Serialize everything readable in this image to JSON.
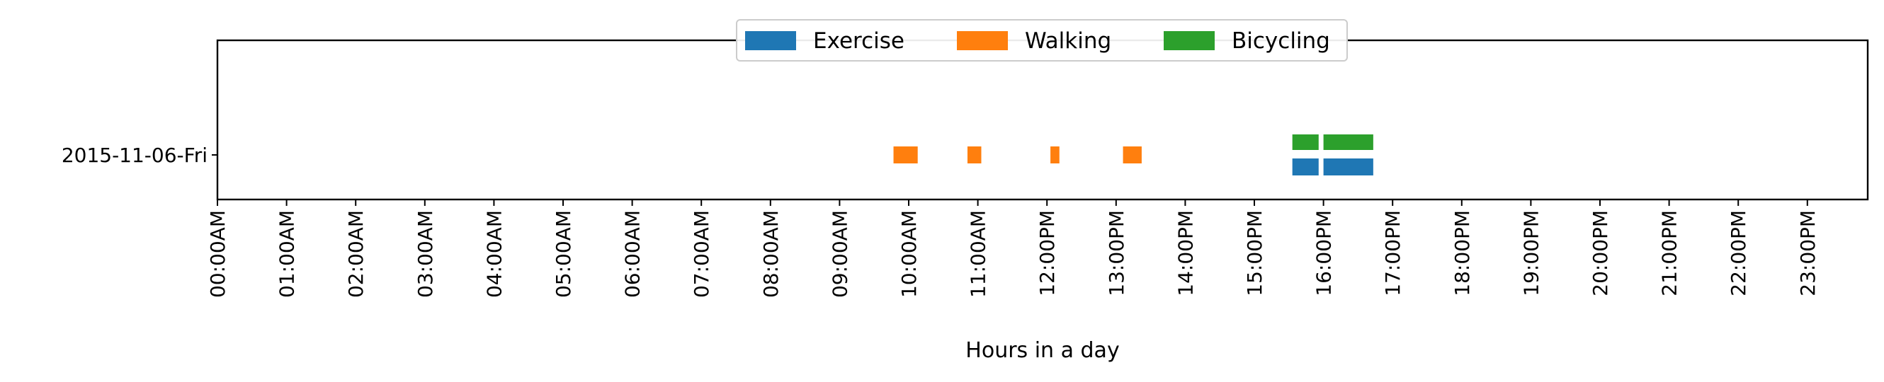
{
  "chart_data": {
    "type": "bar",
    "orientation": "horizontal-timeline",
    "title": "",
    "xlabel": "Hours in a day",
    "ylabel": "",
    "xlim": [
      0,
      24
    ],
    "x_tick_values": [
      0,
      1,
      2,
      3,
      4,
      5,
      6,
      7,
      8,
      9,
      10,
      11,
      12,
      13,
      14,
      15,
      16,
      17,
      18,
      19,
      20,
      21,
      22,
      23
    ],
    "x_tick_labels": [
      "00:00AM",
      "01:00AM",
      "02:00AM",
      "03:00AM",
      "04:00AM",
      "05:00AM",
      "06:00AM",
      "07:00AM",
      "08:00AM",
      "09:00AM",
      "10:00AM",
      "11:00AM",
      "12:00PM",
      "13:00PM",
      "14:00PM",
      "15:00PM",
      "16:00PM",
      "17:00PM",
      "18:00PM",
      "19:00PM",
      "20:00PM",
      "21:00PM",
      "22:00PM",
      "23:00PM"
    ],
    "categories": [
      "2015-11-06-Fri"
    ],
    "legend_position": "top-center",
    "grid": false,
    "series": [
      {
        "name": "Exercise",
        "color": "#1f77b4",
        "lane": "below",
        "intervals": [
          {
            "start": 15.55,
            "end": 15.93
          },
          {
            "start": 16.0,
            "end": 16.72
          }
        ]
      },
      {
        "name": "Walking",
        "color": "#ff7f0e",
        "lane": "center",
        "intervals": [
          {
            "start": 9.78,
            "end": 10.13
          },
          {
            "start": 10.85,
            "end": 11.05
          },
          {
            "start": 12.05,
            "end": 12.18
          },
          {
            "start": 13.1,
            "end": 13.37
          }
        ]
      },
      {
        "name": "Bicycling",
        "color": "#2ca02c",
        "lane": "above",
        "intervals": [
          {
            "start": 15.55,
            "end": 15.93
          },
          {
            "start": 16.0,
            "end": 16.72
          }
        ]
      }
    ]
  }
}
